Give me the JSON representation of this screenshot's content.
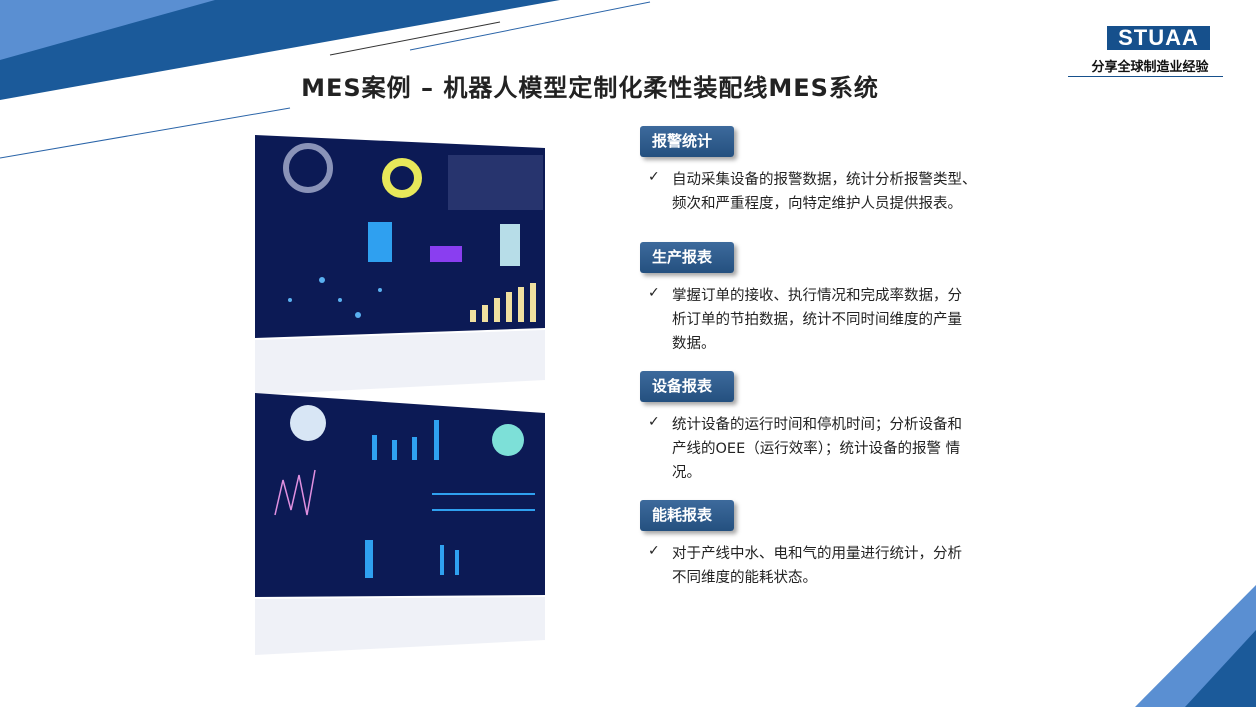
{
  "header": {
    "title": "MES案例 – 机器人模型定制化柔性装配线MES系统",
    "logo": "STUAA",
    "slogan": "分享全球制造业经验"
  },
  "sections": [
    {
      "heading": "报警统计",
      "lines": [
        "自动采集设备的报警数据，统计分析报警类型、",
        "频次和严重程度，向特定维护人员提供报表。"
      ]
    },
    {
      "heading": "生产报表",
      "lines": [
        "掌握订单的接收、执行情况和完成率数据，分",
        "析订单的节拍数据，统计不同时间维度的产量",
        "数据。"
      ]
    },
    {
      "heading": "设备报表",
      "lines": [
        "统计设备的运行时间和停机时间；分析设备和",
        "产线的OEE（运行效率）；统计设备的报警 情",
        "况。"
      ]
    },
    {
      "heading": "能耗报表",
      "lines": [
        "对于产线中水、电和气的用量进行统计，分析",
        "不同维度的能耗状态。"
      ]
    }
  ]
}
